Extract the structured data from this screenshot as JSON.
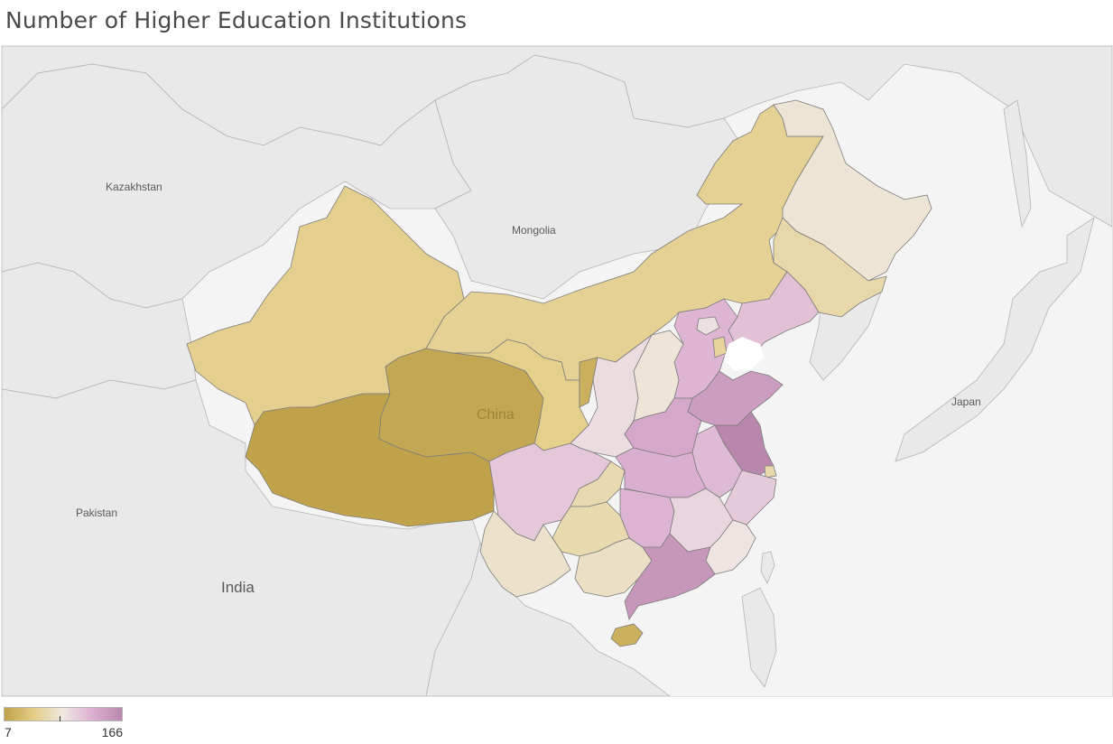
{
  "title": "Number of Higher Education Institutions",
  "map": {
    "country_labels": {
      "kazakhstan": "Kazakhstan",
      "mongolia": "Mongolia",
      "china": "China",
      "japan": "Japan",
      "pakistan": "Pakistan",
      "india": "India"
    },
    "colors": {
      "background_land": "#e9e9e9",
      "water": "#ffffff",
      "border": "#8a8a8a",
      "scale_low": "#bfa24a",
      "scale_mid_low": "#e3cd86",
      "scale_mid": "#efe8e2",
      "scale_mid_high": "#dcb0d2",
      "scale_high": "#b987ad"
    },
    "regions": [
      {
        "name": "Xinjiang",
        "value": 50
      },
      {
        "name": "Tibet",
        "value": 7
      },
      {
        "name": "Qinghai",
        "value": 12
      },
      {
        "name": "Inner Mongolia",
        "value": 53
      },
      {
        "name": "Gansu",
        "value": 49
      },
      {
        "name": "Ningxia",
        "value": 19
      },
      {
        "name": "Heilongjiang",
        "value": 81
      },
      {
        "name": "Jilin",
        "value": 62
      },
      {
        "name": "Liaoning",
        "value": 114
      },
      {
        "name": "Hebei",
        "value": 122
      },
      {
        "name": "Beijing",
        "value": 92
      },
      {
        "name": "Tianjin",
        "value": 56
      },
      {
        "name": "Shanxi",
        "value": 82
      },
      {
        "name": "Shaanxi",
        "value": 95
      },
      {
        "name": "Shandong",
        "value": 145
      },
      {
        "name": "Henan",
        "value": 134
      },
      {
        "name": "Jiangsu",
        "value": 166
      },
      {
        "name": "Shanghai",
        "value": 63
      },
      {
        "name": "Anhui",
        "value": 119
      },
      {
        "name": "Sichuan",
        "value": 109
      },
      {
        "name": "Chongqing",
        "value": 65
      },
      {
        "name": "Hubei",
        "value": 128
      },
      {
        "name": "Zhejiang",
        "value": 108
      },
      {
        "name": "Hunan",
        "value": 124
      },
      {
        "name": "Jiangxi",
        "value": 100
      },
      {
        "name": "Fujian",
        "value": 89
      },
      {
        "name": "Guizhou",
        "value": 64
      },
      {
        "name": "Yunnan",
        "value": 77
      },
      {
        "name": "Guangxi",
        "value": 74
      },
      {
        "name": "Guangdong",
        "value": 151
      },
      {
        "name": "Hainan",
        "value": 20
      }
    ]
  },
  "legend": {
    "min_label": "7",
    "max_label": "166",
    "min": 7,
    "max": 166
  }
}
